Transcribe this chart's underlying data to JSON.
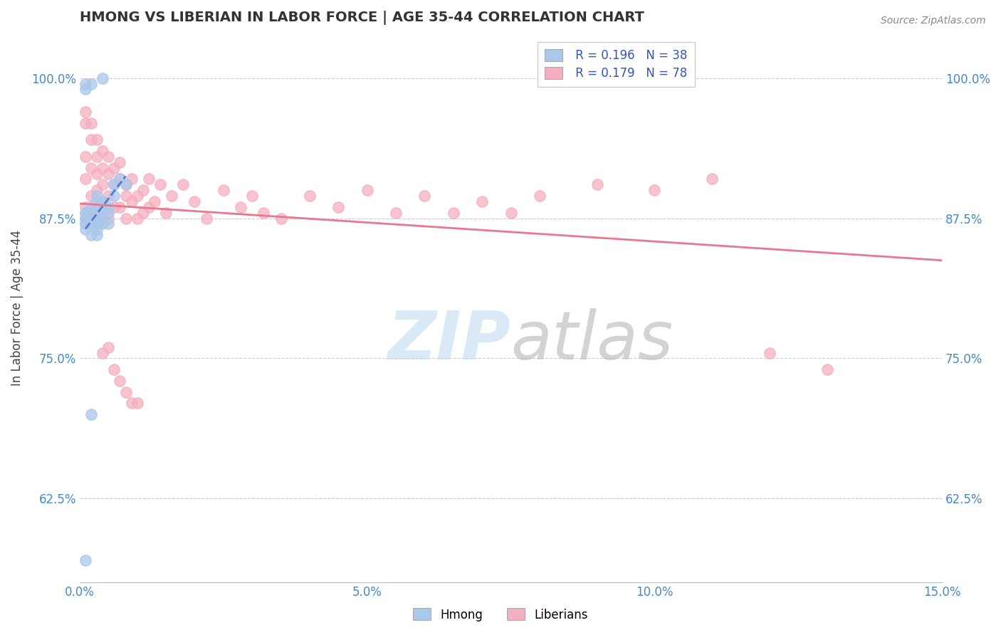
{
  "title": "HMONG VS LIBERIAN IN LABOR FORCE | AGE 35-44 CORRELATION CHART",
  "source_text": "Source: ZipAtlas.com",
  "ylabel": "In Labor Force | Age 35-44",
  "xlim": [
    0.0,
    0.15
  ],
  "ylim": [
    0.55,
    1.04
  ],
  "yticks": [
    0.625,
    0.75,
    0.875,
    1.0
  ],
  "yticklabels": [
    "62.5%",
    "75.0%",
    "87.5%",
    "100.0%"
  ],
  "xticks": [
    0.0,
    0.05,
    0.1,
    0.15
  ],
  "xticklabels": [
    "0.0%",
    "5.0%",
    "10.0%",
    "15.0%"
  ],
  "hmong_R": 0.196,
  "hmong_N": 38,
  "liberian_R": 0.179,
  "liberian_N": 78,
  "hmong_color": "#aac8ea",
  "liberian_color": "#f5afc0",
  "hmong_edge_color": "#aac8ea",
  "liberian_edge_color": "#f5afc0",
  "hmong_line_color": "#5577cc",
  "liberian_line_color": "#e87890",
  "background_color": "#ffffff",
  "title_color": "#333333",
  "tick_color": "#4488cc",
  "grid_color": "#cccccc",
  "watermark_zip_color": "#c0dcf0",
  "watermark_atlas_color": "#b0b0b0",
  "legend_text_color": "#3355bb",
  "source_color": "#888888",
  "marker_size": 120,
  "marker_alpha": 0.75,
  "hmong_x": [
    0.002,
    0.004,
    0.001,
    0.001,
    0.001,
    0.001,
    0.001,
    0.001,
    0.001,
    0.001,
    0.001,
    0.002,
    0.002,
    0.002,
    0.002,
    0.002,
    0.002,
    0.003,
    0.003,
    0.003,
    0.003,
    0.003,
    0.003,
    0.003,
    0.003,
    0.004,
    0.004,
    0.004,
    0.004,
    0.005,
    0.005,
    0.005,
    0.006,
    0.006,
    0.007,
    0.008,
    0.001,
    0.002
  ],
  "hmong_y": [
    0.995,
    1.0,
    0.995,
    0.99,
    0.88,
    0.88,
    0.875,
    0.875,
    0.87,
    0.87,
    0.865,
    0.885,
    0.88,
    0.875,
    0.875,
    0.87,
    0.86,
    0.895,
    0.89,
    0.88,
    0.875,
    0.875,
    0.87,
    0.865,
    0.86,
    0.89,
    0.885,
    0.875,
    0.87,
    0.885,
    0.88,
    0.87,
    0.905,
    0.895,
    0.91,
    0.905,
    0.57,
    0.7
  ],
  "liberian_x": [
    0.001,
    0.001,
    0.001,
    0.001,
    0.001,
    0.001,
    0.002,
    0.002,
    0.002,
    0.002,
    0.002,
    0.003,
    0.003,
    0.003,
    0.003,
    0.003,
    0.003,
    0.004,
    0.004,
    0.004,
    0.004,
    0.004,
    0.005,
    0.005,
    0.005,
    0.005,
    0.006,
    0.006,
    0.006,
    0.007,
    0.007,
    0.007,
    0.008,
    0.008,
    0.008,
    0.009,
    0.009,
    0.01,
    0.01,
    0.011,
    0.011,
    0.012,
    0.012,
    0.013,
    0.014,
    0.015,
    0.016,
    0.018,
    0.02,
    0.022,
    0.025,
    0.028,
    0.03,
    0.032,
    0.035,
    0.04,
    0.045,
    0.05,
    0.055,
    0.06,
    0.065,
    0.07,
    0.075,
    0.08,
    0.09,
    0.1,
    0.11,
    0.12,
    0.13,
    0.002,
    0.003,
    0.004,
    0.005,
    0.006,
    0.007,
    0.008,
    0.009,
    0.01
  ],
  "liberian_y": [
    0.97,
    0.96,
    0.93,
    0.91,
    0.885,
    0.875,
    0.96,
    0.945,
    0.92,
    0.895,
    0.875,
    0.945,
    0.93,
    0.915,
    0.9,
    0.885,
    0.875,
    0.935,
    0.92,
    0.905,
    0.89,
    0.875,
    0.93,
    0.915,
    0.895,
    0.875,
    0.92,
    0.905,
    0.885,
    0.925,
    0.91,
    0.885,
    0.905,
    0.895,
    0.875,
    0.91,
    0.89,
    0.895,
    0.875,
    0.9,
    0.88,
    0.91,
    0.885,
    0.89,
    0.905,
    0.88,
    0.895,
    0.905,
    0.89,
    0.875,
    0.9,
    0.885,
    0.895,
    0.88,
    0.875,
    0.895,
    0.885,
    0.9,
    0.88,
    0.895,
    0.88,
    0.89,
    0.88,
    0.895,
    0.905,
    0.9,
    0.91,
    0.755,
    0.74,
    0.875,
    0.87,
    0.755,
    0.76,
    0.74,
    0.73,
    0.72,
    0.71,
    0.71
  ]
}
